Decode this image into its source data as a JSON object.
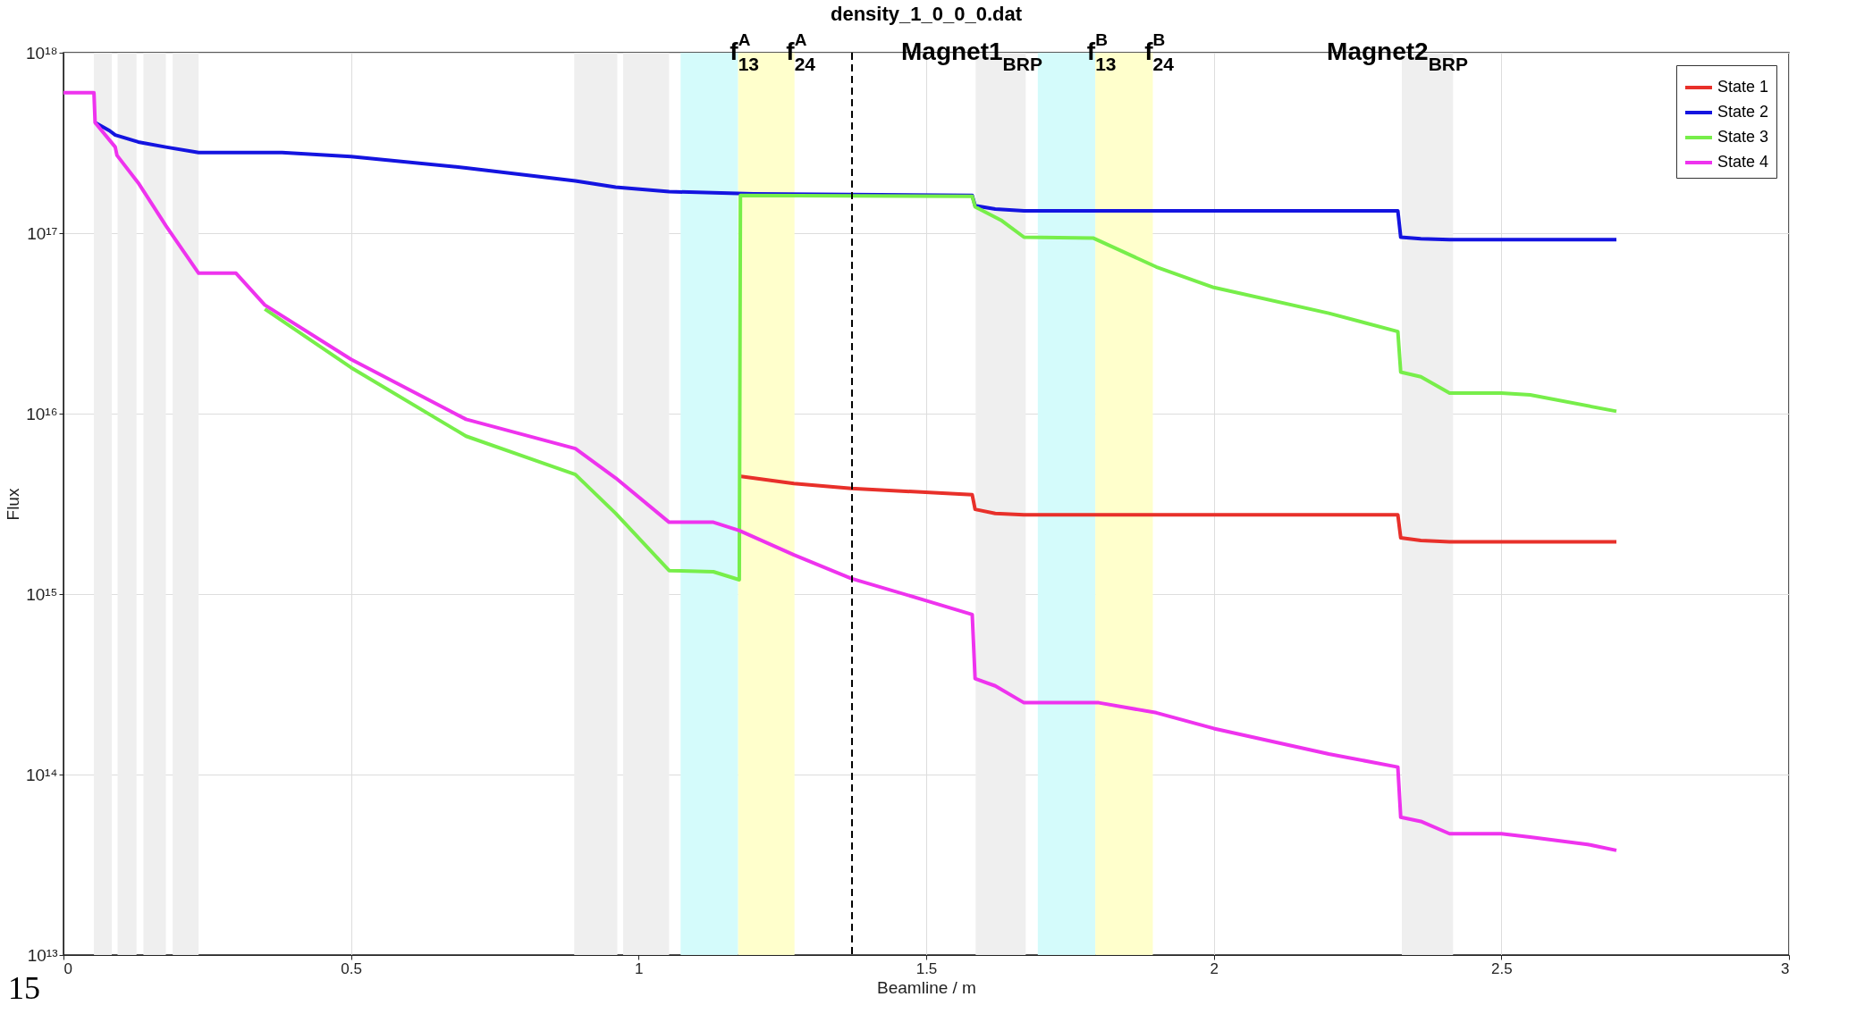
{
  "chart_data": {
    "type": "line",
    "title": "density_1_0_0_0.dat",
    "xlabel": "Beamline / m",
    "ylabel": "Flux",
    "log": "y",
    "grid": true,
    "legend": "top right",
    "line_style": "solid",
    "marker": "none",
    "xlim": [
      0,
      3
    ],
    "xticks": [
      0,
      0.5,
      1,
      1.5,
      2,
      2.5,
      3
    ],
    "ylim": [
      10000000000000.0,
      1e+18
    ],
    "yticks": [
      {
        "value": 10000000000000.0,
        "label": "10¹³"
      },
      {
        "value": 100000000000000.0,
        "label": "10¹⁴"
      },
      {
        "value": 1000000000000000.0,
        "label": "10¹⁵"
      },
      {
        "value": 1e+16,
        "label": "10¹⁶"
      },
      {
        "value": 1e+17,
        "label": "10¹⁷"
      },
      {
        "value": 1e+18,
        "label": "10¹⁸"
      }
    ],
    "series": [
      {
        "name": "State 1",
        "color": "#e8302a",
        "x": [
          1.175,
          1.27,
          1.37,
          1.58,
          1.585,
          1.62,
          1.67,
          2.32,
          2.325,
          2.36,
          2.41,
          2.7
        ],
        "values": [
          4500000000000000.0,
          4100000000000000.0,
          3850000000000000.0,
          3550000000000000.0,
          2950000000000000.0,
          2800000000000000.0,
          2750000000000000.0,
          2750000000000000.0,
          2050000000000000.0,
          1980000000000000.0,
          1950000000000000.0,
          1950000000000000.0
        ]
      },
      {
        "name": "State 2",
        "color": "#1414e0",
        "x": [
          0.055,
          0.08,
          0.09,
          0.13,
          0.178,
          0.235,
          0.38,
          0.5,
          0.7,
          0.89,
          0.96,
          1.053,
          1.2,
          1.58,
          1.585,
          1.62,
          1.67,
          2.32,
          2.325,
          2.36,
          2.41,
          2.7
        ],
        "values": [
          4.1e+17,
          3.7e+17,
          3.5e+17,
          3.2e+17,
          3e+17,
          2.8e+17,
          2.8e+17,
          2.66e+17,
          2.3e+17,
          1.95e+17,
          1.8e+17,
          1.7e+17,
          1.65e+17,
          1.62e+17,
          1.42e+17,
          1.36e+17,
          1.33e+17,
          1.33e+17,
          9.5e+16,
          9.3e+16,
          9.2e+16,
          9.2e+16
        ]
      },
      {
        "name": "State 3",
        "color": "#77ee4a",
        "x": [
          0.35,
          0.5,
          0.7,
          0.89,
          0.96,
          1.053,
          1.13,
          1.175,
          1.177,
          1.58,
          1.585,
          1.63,
          1.67,
          1.79,
          1.9,
          2.0,
          2.2,
          2.32,
          2.325,
          2.36,
          2.41,
          2.5,
          2.55,
          2.7
        ],
        "values": [
          3.8e+16,
          1.8e+16,
          7500000000000000.0,
          4600000000000000.0,
          2800000000000000.0,
          1350000000000000.0,
          1330000000000000.0,
          1200000000000000.0,
          1.62e+17,
          1.6e+17,
          1.4e+17,
          1.18e+17,
          9.5e+16,
          9.4e+16,
          6.5e+16,
          5e+16,
          3.6e+16,
          2.85e+16,
          1.7e+16,
          1.6e+16,
          1.3e+16,
          1.3e+16,
          1.27e+16,
          1.03e+16
        ]
      },
      {
        "name": "State 4",
        "color": "#ee33ee",
        "x": [
          0,
          0.053,
          0.055,
          0.09,
          0.093,
          0.13,
          0.178,
          0.235,
          0.3,
          0.35,
          0.5,
          0.7,
          0.89,
          0.96,
          1.053,
          1.13,
          1.175,
          1.27,
          1.37,
          1.5,
          1.58,
          1.585,
          1.62,
          1.67,
          1.8,
          1.9,
          2.0,
          2.2,
          2.32,
          2.325,
          2.36,
          2.41,
          2.5,
          2.55,
          2.65,
          2.7
        ],
        "values": [
          6e+17,
          6e+17,
          4.1e+17,
          3e+17,
          2.7e+17,
          1.9e+17,
          1.1e+17,
          6e+16,
          6e+16,
          4e+16,
          2e+16,
          9300000000000000.0,
          6400000000000000.0,
          4400000000000000.0,
          2500000000000000.0,
          2500000000000000.0,
          2250000000000000.0,
          1650000000000000.0,
          1220000000000000.0,
          920000000000000.0,
          770000000000000.0,
          340000000000000.0,
          310000000000000.0,
          250000000000000.0,
          250000000000000.0,
          220000000000000.0,
          180000000000000.0,
          130000000000000.0,
          110000000000000.0,
          58000000000000.0,
          55000000000000.0,
          47000000000000.0,
          47000000000000.0,
          45000000000000.0,
          41000000000000.0,
          38000000000000.0
        ]
      }
    ],
    "bands": [
      {
        "axis": "x",
        "from": 0.053,
        "to": 0.084,
        "color": "#efefef"
      },
      {
        "axis": "x",
        "from": 0.094,
        "to": 0.127,
        "color": "#efefef"
      },
      {
        "axis": "x",
        "from": 0.139,
        "to": 0.178,
        "color": "#efefef"
      },
      {
        "axis": "x",
        "from": 0.19,
        "to": 0.235,
        "color": "#efefef"
      },
      {
        "axis": "x",
        "from": 0.888,
        "to": 0.963,
        "color": "#efefef"
      },
      {
        "axis": "x",
        "from": 0.973,
        "to": 1.053,
        "color": "#efefef"
      },
      {
        "axis": "x",
        "from": 1.073,
        "to": 1.173,
        "color": "#d4fbfb"
      },
      {
        "axis": "x",
        "from": 1.173,
        "to": 1.271,
        "color": "#ffffcc"
      },
      {
        "axis": "x",
        "from": 1.586,
        "to": 1.673,
        "color": "#efefef"
      },
      {
        "axis": "x",
        "from": 1.694,
        "to": 1.794,
        "color": "#d4fbfb"
      },
      {
        "axis": "x",
        "from": 1.794,
        "to": 1.894,
        "color": "#ffffcc"
      },
      {
        "axis": "x",
        "from": 2.327,
        "to": 2.416,
        "color": "#efefef"
      }
    ],
    "ref_lines": [
      {
        "axis": "x",
        "value": 1.371,
        "color": "#000000",
        "line_style": "dashed"
      }
    ],
    "annotations": [
      {
        "text": "f$^{A}$$_{13}$",
        "x": 1.173,
        "y": 1e+18
      },
      {
        "text": "f$^{A}$$_{24}$",
        "x": 1.271,
        "y": 1e+18
      },
      {
        "text": "Magnet1$_{BRP}$",
        "x": 1.633,
        "y": 1e+18
      },
      {
        "text": "f$^{B}$$_{13}$",
        "x": 1.794,
        "y": 1e+18
      },
      {
        "text": "f$^{B}$$_{24}$",
        "x": 1.894,
        "y": 1e+18
      },
      {
        "text": "Magnet2$_{BRP}$",
        "x": 2.373,
        "y": 1e+18
      },
      "15"
    ]
  }
}
